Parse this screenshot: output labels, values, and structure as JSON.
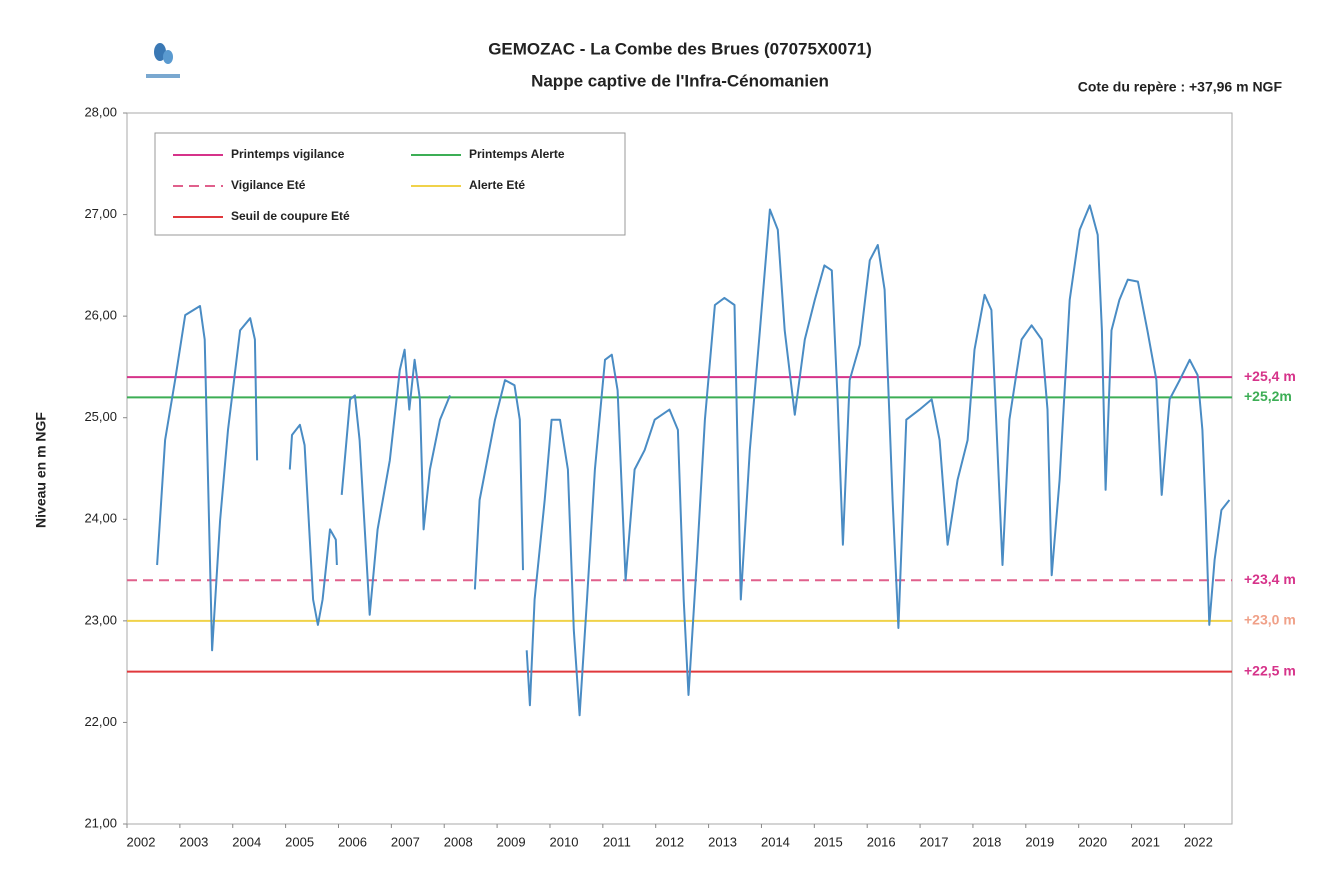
{
  "chart_data": {
    "type": "line",
    "title": "GEMOZAC - La Combe des Brues (07075X0071)",
    "subtitle": "Nappe captive de l'Infra-Cénomanien",
    "annotation": "Cote du repère : +37,96 m NGF",
    "y_label": "Niveau en m NGF",
    "xlim": [
      2002,
      2022.9
    ],
    "xticks": [
      2002,
      2003,
      2004,
      2005,
      2006,
      2007,
      2008,
      2009,
      2010,
      2011,
      2012,
      2013,
      2014,
      2015,
      2016,
      2017,
      2018,
      2019,
      2020,
      2021,
      2022
    ],
    "ylim": [
      21,
      28
    ],
    "yticks": [
      {
        "value": 21,
        "label": "21,00"
      },
      {
        "value": 22,
        "label": "22,00"
      },
      {
        "value": 23,
        "label": "23,00"
      },
      {
        "value": 24,
        "label": "24,00"
      },
      {
        "value": 25,
        "label": "25,00"
      },
      {
        "value": 26,
        "label": "26,00"
      },
      {
        "value": 27,
        "label": "27,00"
      },
      {
        "value": 28,
        "label": "28,00"
      }
    ],
    "grid": false,
    "legend": "top-left",
    "color": "#4a8cc4",
    "x": [
      2002.57,
      2002.72,
      2002.91,
      2003.1,
      2003.38,
      2003.47,
      2003.61,
      2003.76,
      2003.91,
      2004.14,
      2004.33,
      2004.42,
      2004.46,
      null,
      2005.08,
      2005.12,
      2005.27,
      2005.36,
      2005.52,
      2005.61,
      2005.7,
      2005.84,
      2005.95,
      2005.97,
      null,
      2006.06,
      2006.22,
      2006.31,
      2006.4,
      2006.59,
      2006.74,
      2006.97,
      2007.16,
      2007.25,
      2007.34,
      2007.44,
      2007.54,
      2007.61,
      2007.73,
      2007.92,
      2008.11,
      null,
      2008.58,
      2008.67,
      2008.96,
      2009.15,
      2009.33,
      2009.43,
      2009.49,
      null,
      2009.56,
      2009.62,
      2009.71,
      2009.9,
      2010.03,
      2010.19,
      2010.34,
      2010.45,
      2010.56,
      2010.7,
      2010.85,
      2011.04,
      2011.17,
      2011.28,
      2011.43,
      2011.6,
      2011.79,
      2011.98,
      2012.26,
      2012.42,
      2012.53,
      2012.62,
      2012.78,
      2012.93,
      2013.12,
      2013.3,
      2013.49,
      2013.61,
      2013.78,
      2013.97,
      2014.16,
      2014.31,
      2014.44,
      2014.63,
      2014.82,
      2015.01,
      2015.19,
      2015.33,
      2015.44,
      2015.54,
      2015.67,
      2015.86,
      2016.05,
      2016.2,
      2016.33,
      2016.48,
      2016.59,
      2016.74,
      2016.99,
      2017.22,
      2017.37,
      2017.52,
      2017.71,
      2017.9,
      2018.03,
      2018.22,
      2018.35,
      2018.56,
      2018.69,
      2018.92,
      2019.11,
      2019.3,
      2019.41,
      2019.49,
      2019.64,
      2019.83,
      2020.02,
      2020.21,
      2020.36,
      2020.44,
      2020.51,
      2020.62,
      2020.77,
      2020.93,
      2021.12,
      2021.3,
      2021.47,
      2021.57,
      2021.72,
      2021.91,
      2022.1,
      2022.25,
      2022.34,
      2022.4,
      2022.47,
      2022.57,
      2022.7,
      2022.85
    ],
    "values": [
      23.55,
      24.78,
      25.37,
      26.01,
      26.1,
      25.77,
      22.71,
      23.99,
      24.88,
      25.86,
      25.98,
      25.77,
      24.58,
      null,
      24.49,
      24.83,
      24.93,
      24.73,
      23.21,
      22.96,
      23.21,
      23.9,
      23.8,
      23.55,
      null,
      24.24,
      25.18,
      25.22,
      24.78,
      23.06,
      23.9,
      24.58,
      25.47,
      25.67,
      25.08,
      25.57,
      25.18,
      23.9,
      24.49,
      24.98,
      25.22,
      null,
      23.31,
      24.19,
      24.98,
      25.37,
      25.32,
      24.98,
      23.5,
      null,
      22.71,
      22.17,
      23.21,
      24.19,
      24.98,
      24.98,
      24.49,
      22.91,
      22.07,
      23.21,
      24.49,
      25.57,
      25.62,
      25.27,
      23.4,
      24.49,
      24.68,
      24.98,
      25.08,
      24.88,
      23.21,
      22.27,
      23.6,
      24.98,
      26.11,
      26.18,
      26.11,
      23.21,
      24.68,
      25.86,
      27.05,
      26.85,
      25.86,
      25.03,
      25.77,
      26.16,
      26.5,
      26.45,
      25.18,
      23.75,
      25.37,
      25.72,
      26.55,
      26.7,
      26.26,
      24.19,
      22.93,
      24.98,
      25.08,
      25.18,
      24.78,
      23.75,
      24.39,
      24.78,
      25.67,
      26.21,
      26.06,
      23.55,
      24.98,
      25.77,
      25.91,
      25.77,
      25.08,
      23.45,
      24.39,
      26.16,
      26.85,
      27.09,
      26.8,
      25.86,
      24.29,
      25.86,
      26.16,
      26.36,
      26.34,
      25.86,
      25.37,
      24.24,
      25.18,
      25.37,
      25.57,
      25.42,
      24.88,
      24.09,
      22.96,
      23.6,
      24.09,
      24.19
    ],
    "thresholds": [
      {
        "name": "Printemps vigilance",
        "value": 25.4,
        "label": "+25,4 m",
        "color": "#d6338a",
        "label_color": "#d6338a",
        "dashed": false
      },
      {
        "name": "Printemps Alerte",
        "value": 25.2,
        "label": "+25,2m",
        "color": "#3cae55",
        "label_color": "#3cae55",
        "dashed": false
      },
      {
        "name": "Vigilance Eté",
        "value": 23.4,
        "label": "+23,4 m",
        "color": "#e0608c",
        "label_color": "#d6338a",
        "dashed": true
      },
      {
        "name": "Alerte Eté",
        "value": 23.0,
        "label": "+23,0 m",
        "color": "#f0d24a",
        "label_color": "#f0a088",
        "dashed": false
      },
      {
        "name": "Seuil de coupure Eté",
        "value": 22.5,
        "label": "+22,5 m",
        "color": "#e0383c",
        "label_color": "#d6338a",
        "dashed": false
      }
    ]
  }
}
